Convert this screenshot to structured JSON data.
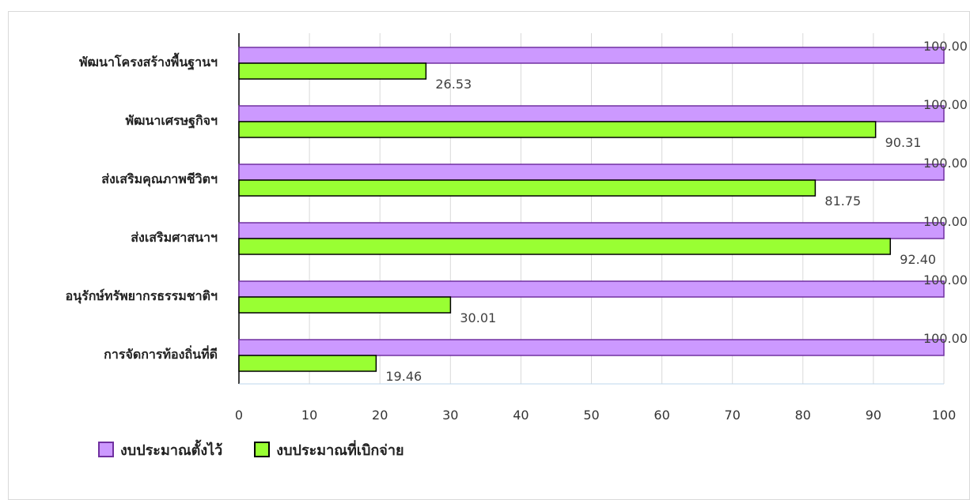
{
  "chart_data": {
    "type": "bar",
    "orientation": "horizontal",
    "categories": [
      "พัฒนาโครงสร้างพื้นฐานฯ",
      "พัฒนาเศรษฐกิจฯ",
      "ส่งเสริมคุณภาพชีวิตฯ",
      "ส่งเสริมศาสนาฯ",
      "อนุรักษ์ทรัพยากรธรรมชาติฯ",
      "การจัดการท้องถิ่นที่ดี"
    ],
    "series": [
      {
        "name": "งบประมาณตั้งไว้",
        "values": [
          100.0,
          100.0,
          100.0,
          100.0,
          100.0,
          100.0
        ],
        "labels": [
          "100.00",
          "100.00",
          "100.00",
          "100.00",
          "100.00",
          "100.00"
        ],
        "color": "#cc99ff",
        "border": "#7030a0"
      },
      {
        "name": "งบประมาณที่เบิกจ่าย",
        "values": [
          26.53,
          90.31,
          81.75,
          92.4,
          30.01,
          19.46
        ],
        "labels": [
          "26.53",
          "90.31",
          "81.75",
          "92.40",
          "30.01",
          "19.46"
        ],
        "color": "#99ff33",
        "border": "#000000"
      }
    ],
    "xlim": [
      0,
      100
    ],
    "xticks": [
      "0",
      "10",
      "20",
      "30",
      "40",
      "50",
      "60",
      "70",
      "80",
      "90",
      "100"
    ],
    "grid": true,
    "legend_position": "bottom-left"
  }
}
